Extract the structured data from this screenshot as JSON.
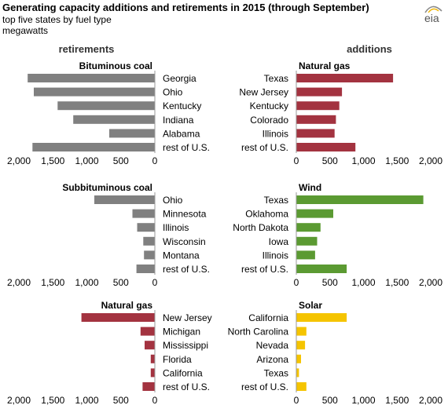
{
  "header": {
    "title": "Generating capacity additions and retirements in 2015 (through September)",
    "subtitle_line1": "top five  states by fuel type",
    "subtitle_line2": "megawatts",
    "logo_text": "eia"
  },
  "chart_data": {
    "type": "bar",
    "column_titles": {
      "retirements": "retirements",
      "additions": "additions"
    },
    "xlim": [
      0,
      2000
    ],
    "ticks": [
      0,
      500,
      1000,
      1500,
      2000
    ],
    "tick_labels": [
      "0",
      "500",
      "1,000",
      "1,500",
      "2,000"
    ],
    "colors": {
      "bituminous_coal": "#808080",
      "subbituminous_coal": "#808080",
      "natural_gas": "#a33340",
      "wind": "#5b9a32",
      "solar": "#f5c400"
    },
    "panels": [
      {
        "side": "retirements",
        "title": "Bituminous coal",
        "color_key": "bituminous_coal",
        "categories": [
          "Georgia",
          "Ohio",
          "Kentucky",
          "Indiana",
          "Alabama",
          "rest of U.S."
        ],
        "values": [
          1870,
          1780,
          1430,
          1200,
          670,
          1800
        ]
      },
      {
        "side": "additions",
        "title": "Natural gas",
        "color_key": "natural_gas",
        "categories": [
          "Texas",
          "New Jersey",
          "Kentucky",
          "Colorado",
          "Illinois",
          "rest of U.S."
        ],
        "values": [
          1440,
          680,
          640,
          590,
          570,
          880
        ]
      },
      {
        "side": "retirements",
        "title": "Subbituminous  coal",
        "color_key": "subbituminous_coal",
        "categories": [
          "Ohio",
          "Minnesota",
          "Illinois",
          "Wisconsin",
          "Montana",
          "rest of U.S."
        ],
        "values": [
          890,
          330,
          260,
          170,
          160,
          270
        ]
      },
      {
        "side": "additions",
        "title": "Wind",
        "color_key": "wind",
        "categories": [
          "Texas",
          "Oklahoma",
          "North Dakota",
          "Iowa",
          "Illinois",
          "rest of U.S."
        ],
        "values": [
          1890,
          550,
          360,
          310,
          280,
          750
        ]
      },
      {
        "side": "retirements",
        "title": "Natural gas",
        "color_key": "natural_gas",
        "categories": [
          "New Jersey",
          "Michigan",
          "Mississippi",
          "Florida",
          "California",
          "rest of U.S."
        ],
        "values": [
          1080,
          210,
          150,
          60,
          60,
          180
        ]
      },
      {
        "side": "additions",
        "title": "Solar",
        "color_key": "solar",
        "categories": [
          "California",
          "North Carolina",
          "Nevada",
          "Arizona",
          "Texas",
          "rest of U.S."
        ],
        "values": [
          750,
          150,
          130,
          70,
          40,
          150
        ]
      }
    ]
  }
}
